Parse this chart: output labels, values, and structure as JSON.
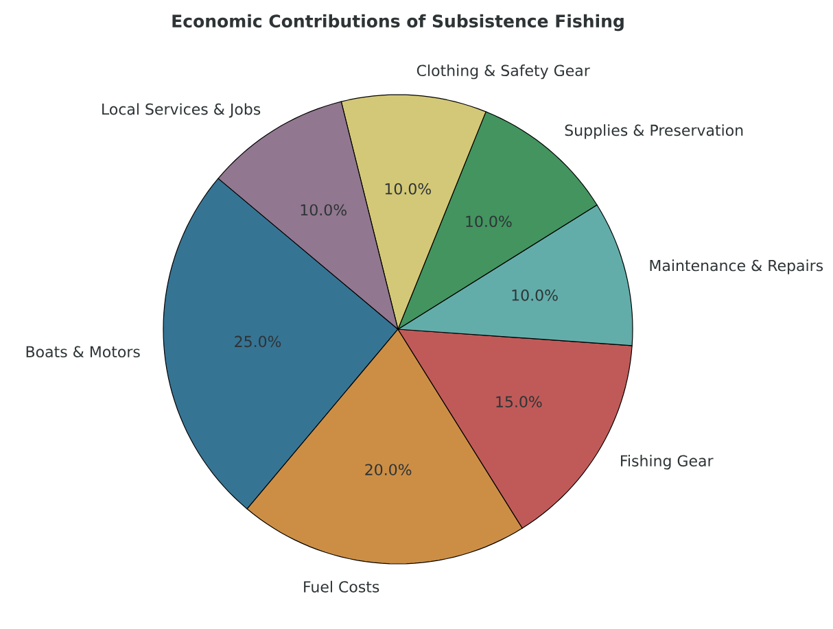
{
  "chart_data": {
    "type": "pie",
    "title": "Economic Contributions of Subsistence Fishing",
    "categories": [
      "Boats & Motors",
      "Fuel Costs",
      "Fishing Gear",
      "Maintenance & Repairs",
      "Supplies & Preservation",
      "Clothing & Safety Gear",
      "Local Services & Jobs"
    ],
    "values": [
      25,
      20,
      15,
      10,
      10,
      10,
      10
    ],
    "colors": [
      "#367494",
      "#cc8e45",
      "#c05a58",
      "#62ada9",
      "#43945f",
      "#d3c877",
      "#91778f"
    ],
    "value_labels": [
      "25.0%",
      "20.0%",
      "15.0%",
      "10.0%",
      "10.0%",
      "10.0%",
      "10.0%"
    ]
  }
}
